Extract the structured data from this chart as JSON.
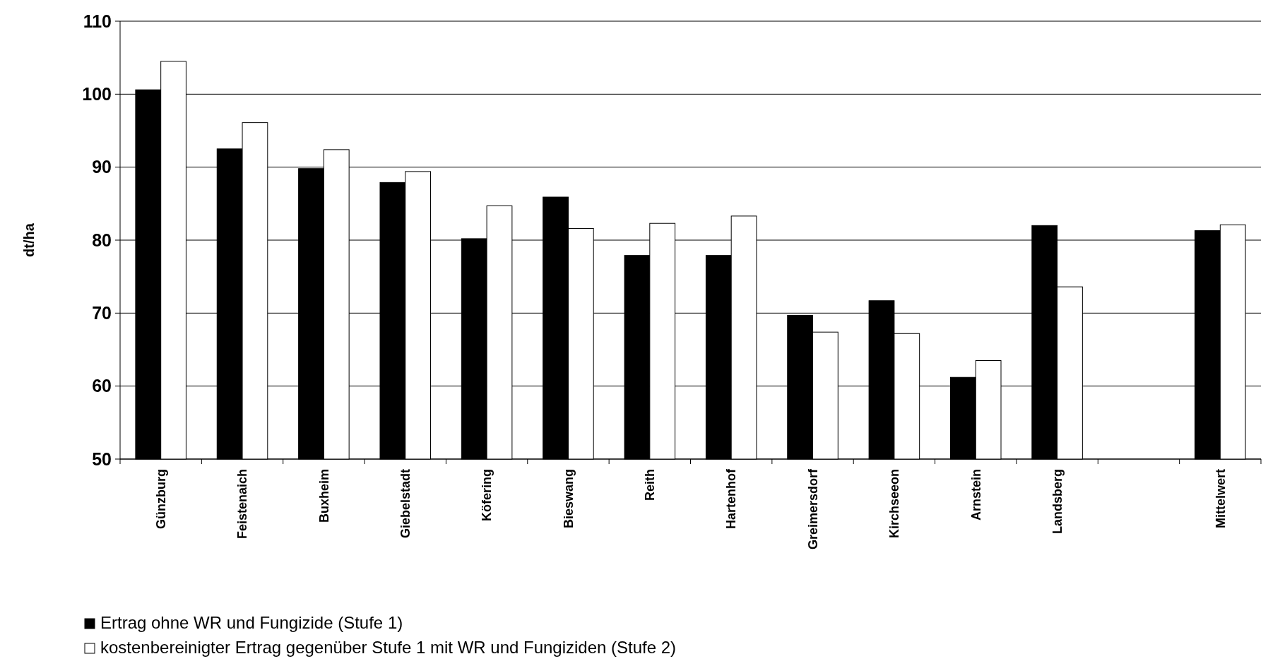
{
  "chart_data": {
    "type": "bar",
    "ylabel": "dt/ha",
    "categories": [
      "Günzburg",
      "Feistenaich",
      "Buxheim",
      "Giebelstadt",
      "Köfering",
      "Bieswang",
      "Reith",
      "Hartenhof",
      "Greimersdorf",
      "Kirchseeon",
      "Arnstein",
      "Landsberg",
      null,
      "Mittelwert"
    ],
    "series": [
      {
        "name": "Ertrag ohne WR und Fungizide (Stufe 1)",
        "color": "#000000",
        "values": [
          100.6,
          92.5,
          89.8,
          87.9,
          80.2,
          85.9,
          77.9,
          77.9,
          69.7,
          71.7,
          61.2,
          82.0,
          null,
          81.3
        ]
      },
      {
        "name": "kostenbereinigter Ertrag gegenüber Stufe 1 mit WR und Fungiziden (Stufe 2)",
        "color": "#ffffff",
        "values": [
          104.5,
          96.1,
          92.4,
          89.4,
          84.7,
          81.6,
          82.3,
          83.3,
          67.4,
          67.2,
          63.5,
          73.6,
          null,
          82.1
        ]
      }
    ],
    "ylim": [
      50,
      110
    ],
    "yticks": [
      50,
      60,
      70,
      80,
      90,
      100,
      110
    ],
    "grid": "y",
    "legend": "bottom left"
  }
}
